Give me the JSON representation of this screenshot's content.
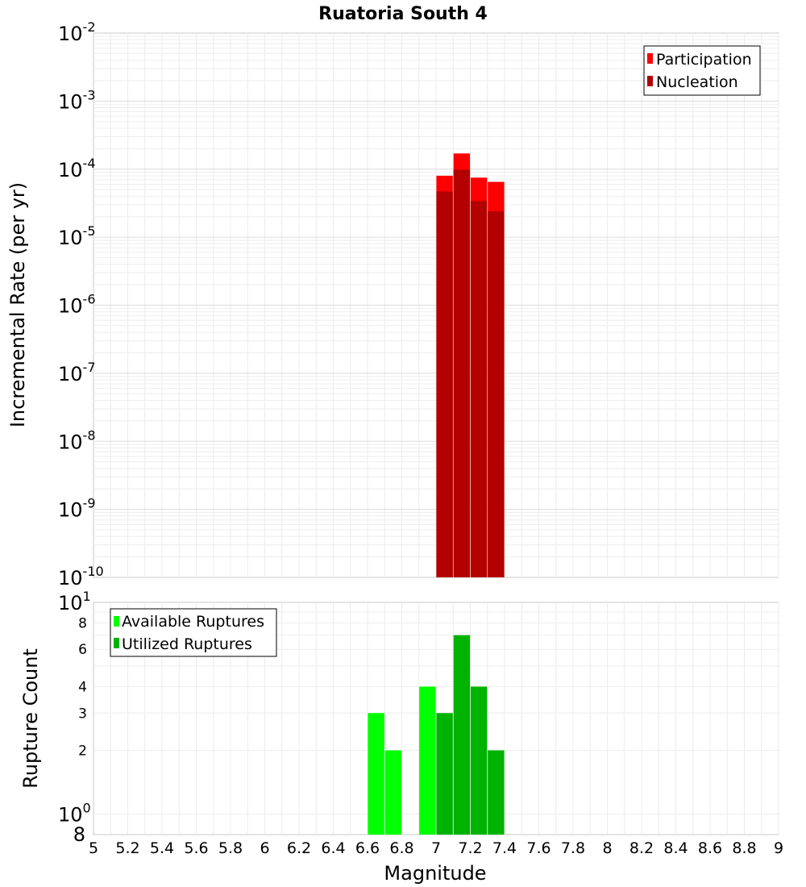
{
  "chart_data": [
    {
      "type": "bar",
      "title": "Ruatoria South 4",
      "ylabel": "Incremental Rate (per yr)",
      "yscale": "log",
      "ylim": [
        1e-10,
        0.01
      ],
      "xlim": [
        5,
        9
      ],
      "y_tick_labels": [
        {
          "base": "10",
          "exp": "-2"
        },
        {
          "base": "10",
          "exp": "-3"
        },
        {
          "base": "10",
          "exp": "-4"
        },
        {
          "base": "10",
          "exp": "-5"
        },
        {
          "base": "10",
          "exp": "-6"
        },
        {
          "base": "10",
          "exp": "-7"
        },
        {
          "base": "10",
          "exp": "-8"
        },
        {
          "base": "10",
          "exp": "-9"
        },
        {
          "base": "10",
          "exp": "-10"
        }
      ],
      "legend": [
        "Participation",
        "Nucleation"
      ],
      "legend_position": "top-right",
      "series": [
        {
          "name": "Participation",
          "color": "#ff0000",
          "x": [
            7.05,
            7.15,
            7.25,
            7.35
          ],
          "values": [
            8e-05,
            0.00017,
            7.5e-05,
            6.5e-05
          ]
        },
        {
          "name": "Nucleation",
          "color": "#b30000",
          "x": [
            7.05,
            7.15,
            7.25,
            7.35
          ],
          "values": [
            4.7e-05,
            9.8e-05,
            3.4e-05,
            2.4e-05
          ]
        }
      ]
    },
    {
      "type": "bar",
      "xlabel": "Magnitude",
      "ylabel": "Rupture Count",
      "yscale": "log",
      "ylim": [
        0.8,
        10
      ],
      "xlim": [
        5,
        9
      ],
      "x_tick_labels": [
        "5",
        "5.2",
        "5.4",
        "5.6",
        "5.8",
        "6",
        "6.2",
        "6.4",
        "6.6",
        "6.8",
        "7",
        "7.2",
        "7.4",
        "7.6",
        "7.8",
        "8",
        "8.2",
        "8.4",
        "8.6",
        "8.8",
        "9"
      ],
      "y_tick_labels": [
        {
          "base": "10",
          "exp": "1"
        },
        {
          "label": "8"
        },
        {
          "label": "6"
        },
        {
          "label": "4"
        },
        {
          "label": "3"
        },
        {
          "label": "2"
        },
        {
          "base": "10",
          "exp": "0"
        },
        {
          "label": "8"
        }
      ],
      "legend": [
        "Available Ruptures",
        "Utilized Ruptures"
      ],
      "legend_position": "top-left",
      "series": [
        {
          "name": "Available Ruptures",
          "color": "#00ff00",
          "x": [
            6.65,
            6.75,
            6.95
          ],
          "values": [
            3,
            2,
            4
          ]
        },
        {
          "name": "Utilized Ruptures",
          "color": "#00b300",
          "x": [
            7.05,
            7.15,
            7.25,
            7.35
          ],
          "values": [
            3,
            7,
            4,
            2
          ]
        }
      ]
    }
  ]
}
